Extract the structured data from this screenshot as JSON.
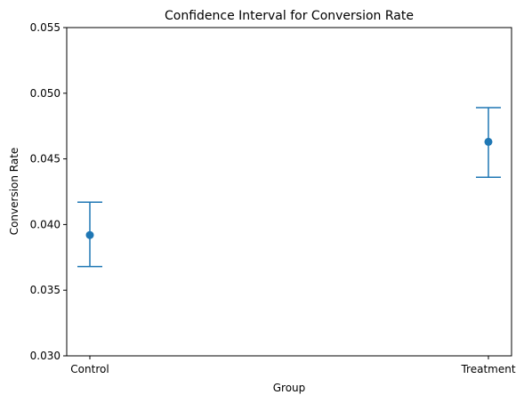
{
  "chart_data": {
    "type": "errorbar",
    "title": "Confidence Interval for Conversion Rate",
    "xlabel": "Group",
    "ylabel": "Conversion Rate",
    "categories": [
      "Control",
      "Treatment"
    ],
    "series": [
      {
        "values": [
          0.0392,
          0.0463
        ],
        "lower": [
          0.0368,
          0.0436
        ],
        "upper": [
          0.0417,
          0.0489
        ],
        "color": "#1f77b4"
      }
    ],
    "ylim": [
      0.03,
      0.055
    ],
    "yticks": [
      0.03,
      0.035,
      0.04,
      0.045,
      0.05,
      0.055
    ],
    "ytick_labels": [
      "0.030",
      "0.035",
      "0.040",
      "0.045",
      "0.050",
      "0.055"
    ],
    "grid": false
  }
}
